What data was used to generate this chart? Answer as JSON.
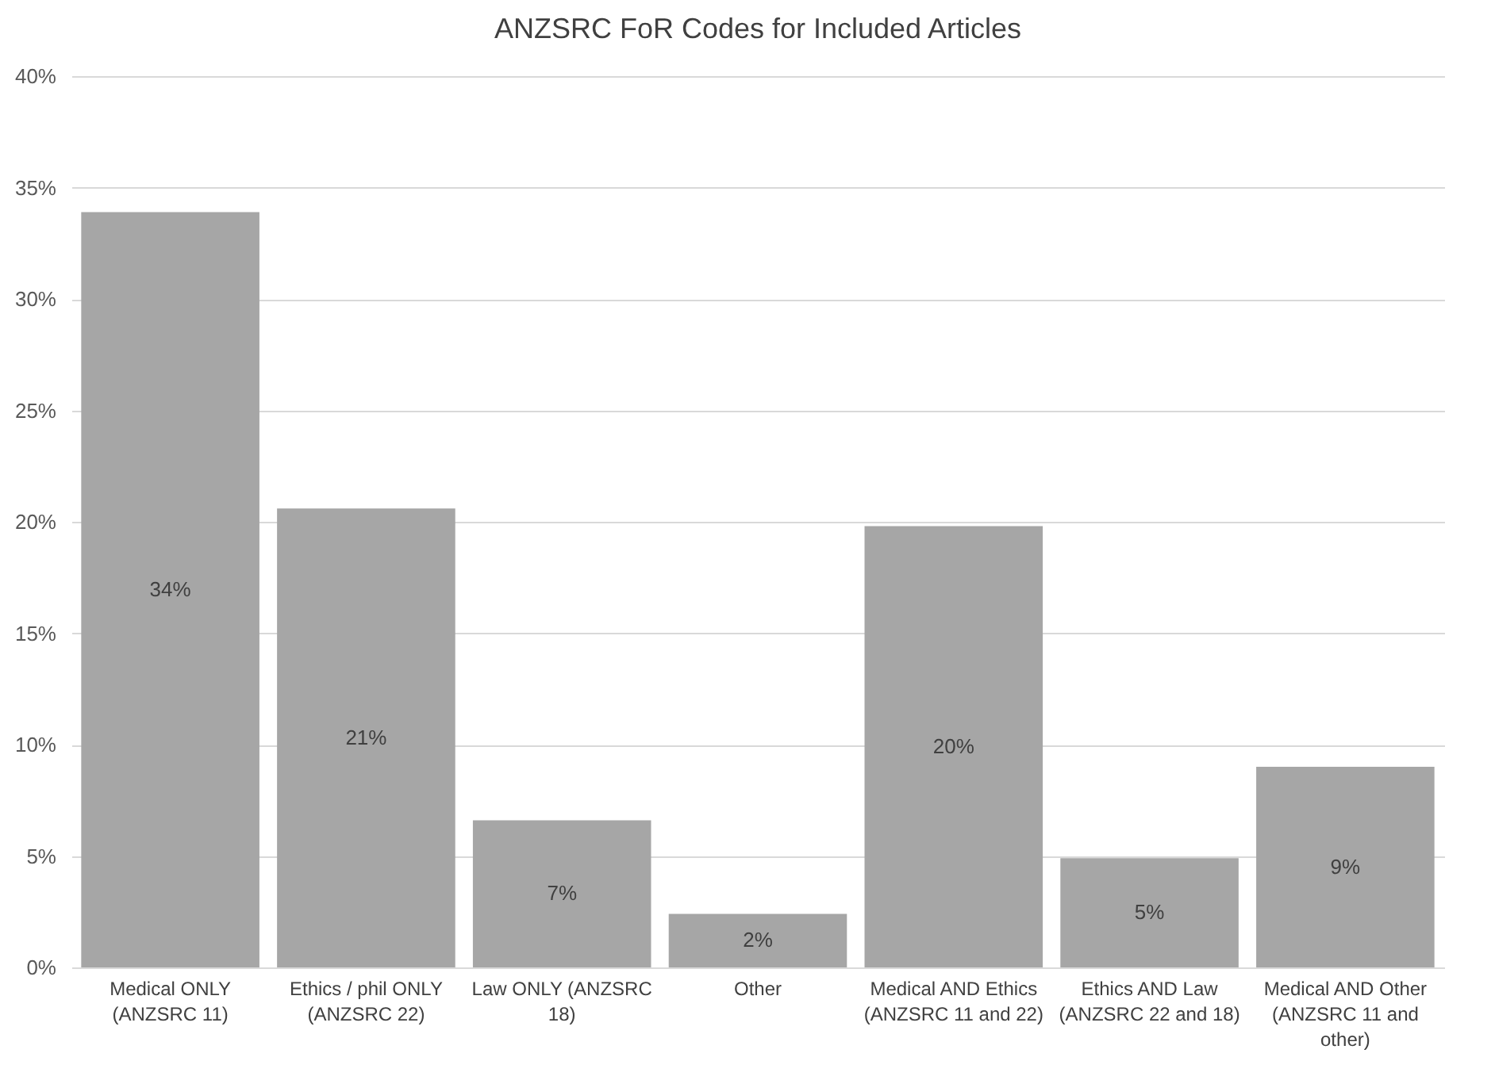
{
  "chart_data": {
    "type": "bar",
    "title": "ANZSRC FoR Codes for Included Articles",
    "categories": [
      "Medical ONLY (ANZSRC  11)",
      "Ethics / phil ONLY (ANZSRC 22)",
      "Law ONLY (ANZSRC 18)",
      "Other",
      "Medical AND Ethics (ANZSRC 11 and 22)",
      "Ethics AND Law (ANZSRC 22 and 18)",
      "Medical AND Other (ANZSRC  11 and other)"
    ],
    "values": [
      33.9,
      20.6,
      6.6,
      2.4,
      19.8,
      4.9,
      9.0
    ],
    "value_labels": [
      "34%",
      "21%",
      "7%",
      "2%",
      "20%",
      "5%",
      "9%"
    ],
    "color": "#a6a6a6",
    "ylim": [
      0,
      40
    ],
    "yticks": [
      {
        "value": 0,
        "label": "0%"
      },
      {
        "value": 5,
        "label": "5%"
      },
      {
        "value": 10,
        "label": "10%"
      },
      {
        "value": 15,
        "label": "15%"
      },
      {
        "value": 20,
        "label": "20%"
      },
      {
        "value": 25,
        "label": "25%"
      },
      {
        "value": 30,
        "label": "30%"
      },
      {
        "value": 35,
        "label": "35%"
      },
      {
        "value": 40,
        "label": "40%"
      }
    ],
    "grid": "y"
  }
}
